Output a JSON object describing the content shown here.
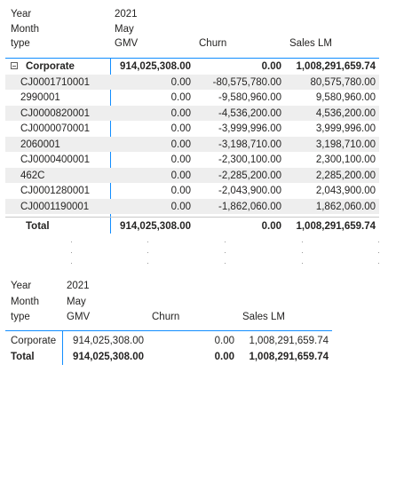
{
  "matrix1": {
    "header": {
      "year_label": "Year",
      "year_value": "2021",
      "month_label": "Month",
      "month_value": "May",
      "type_label": "type",
      "col_gmv": "GMV",
      "col_churn": "Churn",
      "col_sales_lm": "Sales LM"
    },
    "group": {
      "label": "Corporate",
      "gmv": "914,025,308.00",
      "churn": "0.00",
      "sales_lm": "1,008,291,659.74"
    },
    "rows": [
      {
        "label": "CJ0001710001",
        "gmv": "0.00",
        "churn": "-80,575,780.00",
        "sales_lm": "80,575,780.00"
      },
      {
        "label": "2990001",
        "gmv": "0.00",
        "churn": "-9,580,960.00",
        "sales_lm": "9,580,960.00"
      },
      {
        "label": "CJ0000820001",
        "gmv": "0.00",
        "churn": "-4,536,200.00",
        "sales_lm": "4,536,200.00"
      },
      {
        "label": "CJ0000070001",
        "gmv": "0.00",
        "churn": "-3,999,996.00",
        "sales_lm": "3,999,996.00"
      },
      {
        "label": "2060001",
        "gmv": "0.00",
        "churn": "-3,198,710.00",
        "sales_lm": "3,198,710.00"
      },
      {
        "label": "CJ0000400001",
        "gmv": "0.00",
        "churn": "-2,300,100.00",
        "sales_lm": "2,300,100.00"
      },
      {
        "label": "462C",
        "gmv": "0.00",
        "churn": "-2,285,200.00",
        "sales_lm": "2,285,200.00"
      },
      {
        "label": "CJ0001280001",
        "gmv": "0.00",
        "churn": "-2,043,900.00",
        "sales_lm": "2,043,900.00"
      },
      {
        "label": "CJ0001190001",
        "gmv": "0.00",
        "churn": "-1,862,060.00",
        "sales_lm": "1,862,060.00"
      }
    ],
    "total": {
      "label": "Total",
      "gmv": "914,025,308.00",
      "churn": "0.00",
      "sales_lm": "1,008,291,659.74"
    }
  },
  "matrix2": {
    "header": {
      "year_label": "Year",
      "year_value": "2021",
      "month_label": "Month",
      "month_value": "May",
      "type_label": "type",
      "col_gmv": "GMV",
      "col_churn": "Churn",
      "col_sales_lm": "Sales LM"
    },
    "rows": [
      {
        "label": "Corporate",
        "gmv": "914,025,308.00",
        "churn": "0.00",
        "sales_lm": "1,008,291,659.74"
      }
    ],
    "total": {
      "label": "Total",
      "gmv": "914,025,308.00",
      "churn": "0.00",
      "sales_lm": "1,008,291,659.74"
    }
  }
}
